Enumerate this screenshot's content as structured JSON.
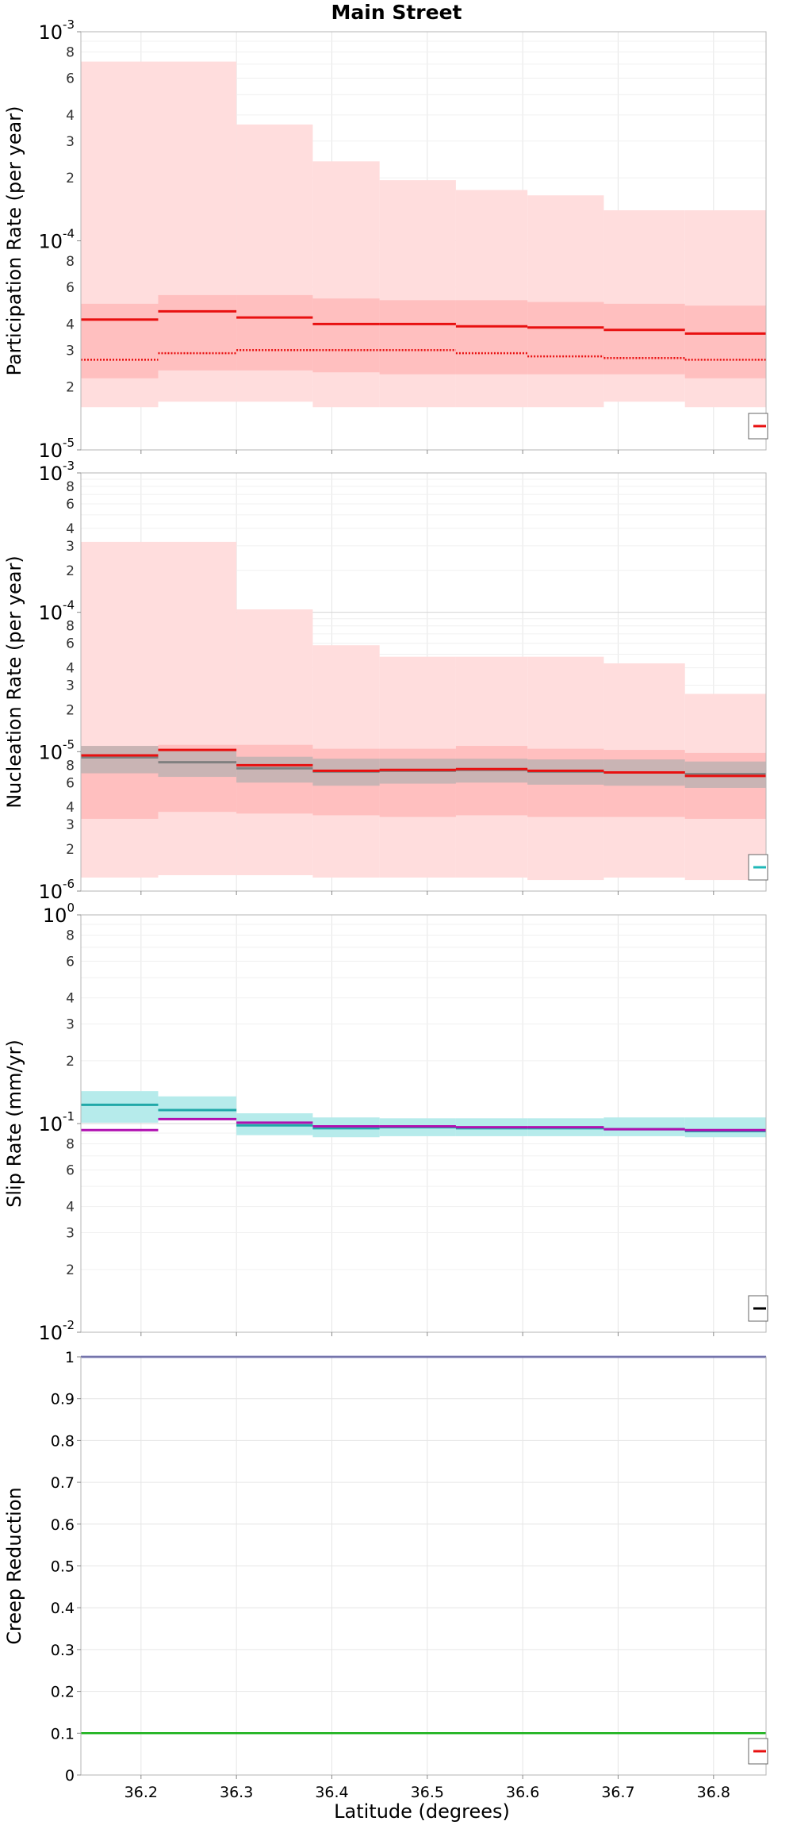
{
  "figure": {
    "title": "Main Street",
    "xlabel": "Latitude (degrees)"
  },
  "chart_data": [
    {
      "type": "line",
      "panel": "participation",
      "ylabel": "Participation Rate (per year)",
      "yscale": "log",
      "ylim": [
        1e-05,
        0.001
      ],
      "xlim": [
        36.137,
        36.855
      ],
      "x_ticks": [
        36.2,
        36.3,
        36.4,
        36.5,
        36.6,
        36.7,
        36.8
      ],
      "x_tick_labels": [
        "36.2",
        "36.3",
        "36.4",
        "36.5",
        "36.6",
        "36.7",
        "36.8"
      ],
      "grid": true,
      "legend": "bottom-right",
      "bins": [
        [
          36.137,
          36.218
        ],
        [
          36.218,
          36.3
        ],
        [
          36.3,
          36.38
        ],
        [
          36.38,
          36.45
        ],
        [
          36.45,
          36.53
        ],
        [
          36.53,
          36.605
        ],
        [
          36.605,
          36.685
        ],
        [
          36.685,
          36.77
        ],
        [
          36.77,
          36.855
        ]
      ],
      "bands": [
        {
          "color": "#ffdddd",
          "low": [
            1.6e-05,
            1.7e-05,
            1.7e-05,
            1.6e-05,
            1.6e-05,
            1.6e-05,
            1.6e-05,
            1.7e-05,
            1.6e-05
          ],
          "high": [
            0.00072,
            0.00072,
            0.00036,
            0.00024,
            0.000195,
            0.000175,
            0.000165,
            0.00014,
            0.00014
          ]
        },
        {
          "color": "#ffbfbf",
          "low": [
            2.2e-05,
            2.4e-05,
            2.4e-05,
            2.35e-05,
            2.3e-05,
            2.3e-05,
            2.3e-05,
            2.3e-05,
            2.2e-05
          ],
          "high": [
            5e-05,
            5.5e-05,
            5.5e-05,
            5.3e-05,
            5.2e-05,
            5.2e-05,
            5.1e-05,
            5e-05,
            4.9e-05
          ]
        }
      ],
      "series": [
        {
          "style": "solid",
          "color": "#e81010",
          "values": [
            4.2e-05,
            4.6e-05,
            4.3e-05,
            4e-05,
            4e-05,
            3.9e-05,
            3.85e-05,
            3.75e-05,
            3.6e-05
          ]
        },
        {
          "style": "dotted",
          "color": "#e81010",
          "values": [
            2.7e-05,
            2.9e-05,
            3e-05,
            3e-05,
            3e-05,
            2.9e-05,
            2.8e-05,
            2.75e-05,
            2.7e-05
          ]
        }
      ],
      "legend_swatches": [
        "#e81010"
      ]
    },
    {
      "type": "line",
      "panel": "nucleation",
      "ylabel": "Nucleation Rate (per year)",
      "yscale": "log",
      "ylim": [
        1e-06,
        0.001
      ],
      "xlim": [
        36.137,
        36.855
      ],
      "x_ticks": [
        36.2,
        36.3,
        36.4,
        36.5,
        36.6,
        36.7,
        36.8
      ],
      "grid": true,
      "legend": "bottom-right",
      "bins": [
        [
          36.137,
          36.218
        ],
        [
          36.218,
          36.3
        ],
        [
          36.3,
          36.38
        ],
        [
          36.38,
          36.45
        ],
        [
          36.45,
          36.53
        ],
        [
          36.53,
          36.605
        ],
        [
          36.605,
          36.685
        ],
        [
          36.685,
          36.77
        ],
        [
          36.77,
          36.855
        ]
      ],
      "bands": [
        {
          "color": "#ffdddd",
          "low": [
            1.25e-06,
            1.3e-06,
            1.3e-06,
            1.25e-06,
            1.25e-06,
            1.25e-06,
            1.2e-06,
            1.25e-06,
            1.2e-06
          ],
          "high": [
            0.00032,
            0.00032,
            0.000105,
            5.8e-05,
            4.8e-05,
            4.8e-05,
            4.8e-05,
            4.3e-05,
            2.6e-05
          ]
        },
        {
          "color": "#ffbfbf",
          "low": [
            3.3e-06,
            3.7e-06,
            3.6e-06,
            3.5e-06,
            3.4e-06,
            3.5e-06,
            3.4e-06,
            3.4e-06,
            3.3e-06
          ],
          "high": [
            1.1e-05,
            1.12e-05,
            1.12e-05,
            1.05e-05,
            1.05e-05,
            1.1e-05,
            1.05e-05,
            1.03e-05,
            9.8e-06
          ]
        },
        {
          "color": "#c9b4b4",
          "low": [
            7e-06,
            6.6e-06,
            6e-06,
            5.7e-06,
            5.9e-06,
            6e-06,
            5.8e-06,
            5.7e-06,
            5.5e-06
          ],
          "high": [
            1.1e-05,
            1.05e-05,
            9.2e-06,
            8.9e-06,
            8.9e-06,
            8.9e-06,
            8.8e-06,
            8.8e-06,
            8.5e-06
          ]
        }
      ],
      "series": [
        {
          "style": "solid",
          "color": "#808080",
          "values": [
            9.1e-06,
            8.4e-06,
            7.6e-06,
            7.2e-06,
            7.3e-06,
            7.4e-06,
            7.2e-06,
            7.1e-06,
            6.9e-06
          ]
        },
        {
          "style": "solid",
          "color": "#e81010",
          "values": [
            9.4e-06,
            1.03e-05,
            8e-06,
            7.3e-06,
            7.4e-06,
            7.5e-06,
            7.3e-06,
            7.1e-06,
            6.7e-06
          ]
        }
      ],
      "legend_swatches": [
        "#20b8b8"
      ]
    },
    {
      "type": "line",
      "panel": "slip",
      "ylabel": "Slip Rate (mm/yr)",
      "yscale": "log",
      "ylim": [
        0.01,
        1
      ],
      "xlim": [
        36.137,
        36.855
      ],
      "x_ticks": [
        36.2,
        36.3,
        36.4,
        36.5,
        36.6,
        36.7,
        36.8
      ],
      "grid": true,
      "legend": "bottom-right",
      "bins": [
        [
          36.137,
          36.218
        ],
        [
          36.218,
          36.3
        ],
        [
          36.3,
          36.38
        ],
        [
          36.38,
          36.45
        ],
        [
          36.45,
          36.53
        ],
        [
          36.53,
          36.605
        ],
        [
          36.605,
          36.685
        ],
        [
          36.685,
          36.77
        ],
        [
          36.77,
          36.855
        ]
      ],
      "bands": [
        {
          "color": "#b6ebeb",
          "low": [
            0.101,
            0.104,
            0.088,
            0.086,
            0.087,
            0.087,
            0.087,
            0.087,
            0.086
          ],
          "high": [
            0.143,
            0.135,
            0.112,
            0.107,
            0.106,
            0.106,
            0.106,
            0.107,
            0.107
          ]
        }
      ],
      "series": [
        {
          "style": "solid",
          "color": "#20a8a8",
          "values": [
            0.123,
            0.116,
            0.098,
            0.095,
            0.096,
            0.095,
            0.095,
            0.094,
            0.092
          ]
        },
        {
          "style": "solid",
          "color": "#b010b0",
          "values": [
            0.093,
            0.105,
            0.101,
            0.097,
            0.097,
            0.096,
            0.096,
            0.094,
            0.093
          ]
        }
      ],
      "legend_swatches": [
        "#000000"
      ]
    },
    {
      "type": "line",
      "panel": "creep",
      "ylabel": "Creep Reduction",
      "yscale": "linear",
      "ylim": [
        0,
        1
      ],
      "y_ticks": [
        0,
        0.1,
        0.2,
        0.3,
        0.4,
        0.5,
        0.6,
        0.7,
        0.8,
        0.9,
        1
      ],
      "y_tick_labels": [
        "0",
        "0.1",
        "0.2",
        "0.3",
        "0.4",
        "0.5",
        "0.6",
        "0.7",
        "0.8",
        "0.9",
        "1"
      ],
      "xlim": [
        36.137,
        36.855
      ],
      "x_ticks": [
        36.2,
        36.3,
        36.4,
        36.5,
        36.6,
        36.7,
        36.8
      ],
      "x_tick_labels": [
        "36.2",
        "36.3",
        "36.4",
        "36.5",
        "36.6",
        "36.7",
        "36.8"
      ],
      "grid": true,
      "legend": "bottom-right",
      "series": [
        {
          "style": "solid",
          "color": "#3535a0",
          "values": [
            1,
            1
          ]
        },
        {
          "style": "solid",
          "color": "#16b016",
          "values": [
            0.1,
            0.1
          ]
        }
      ],
      "legend_swatches": [
        "#e81010"
      ]
    }
  ]
}
